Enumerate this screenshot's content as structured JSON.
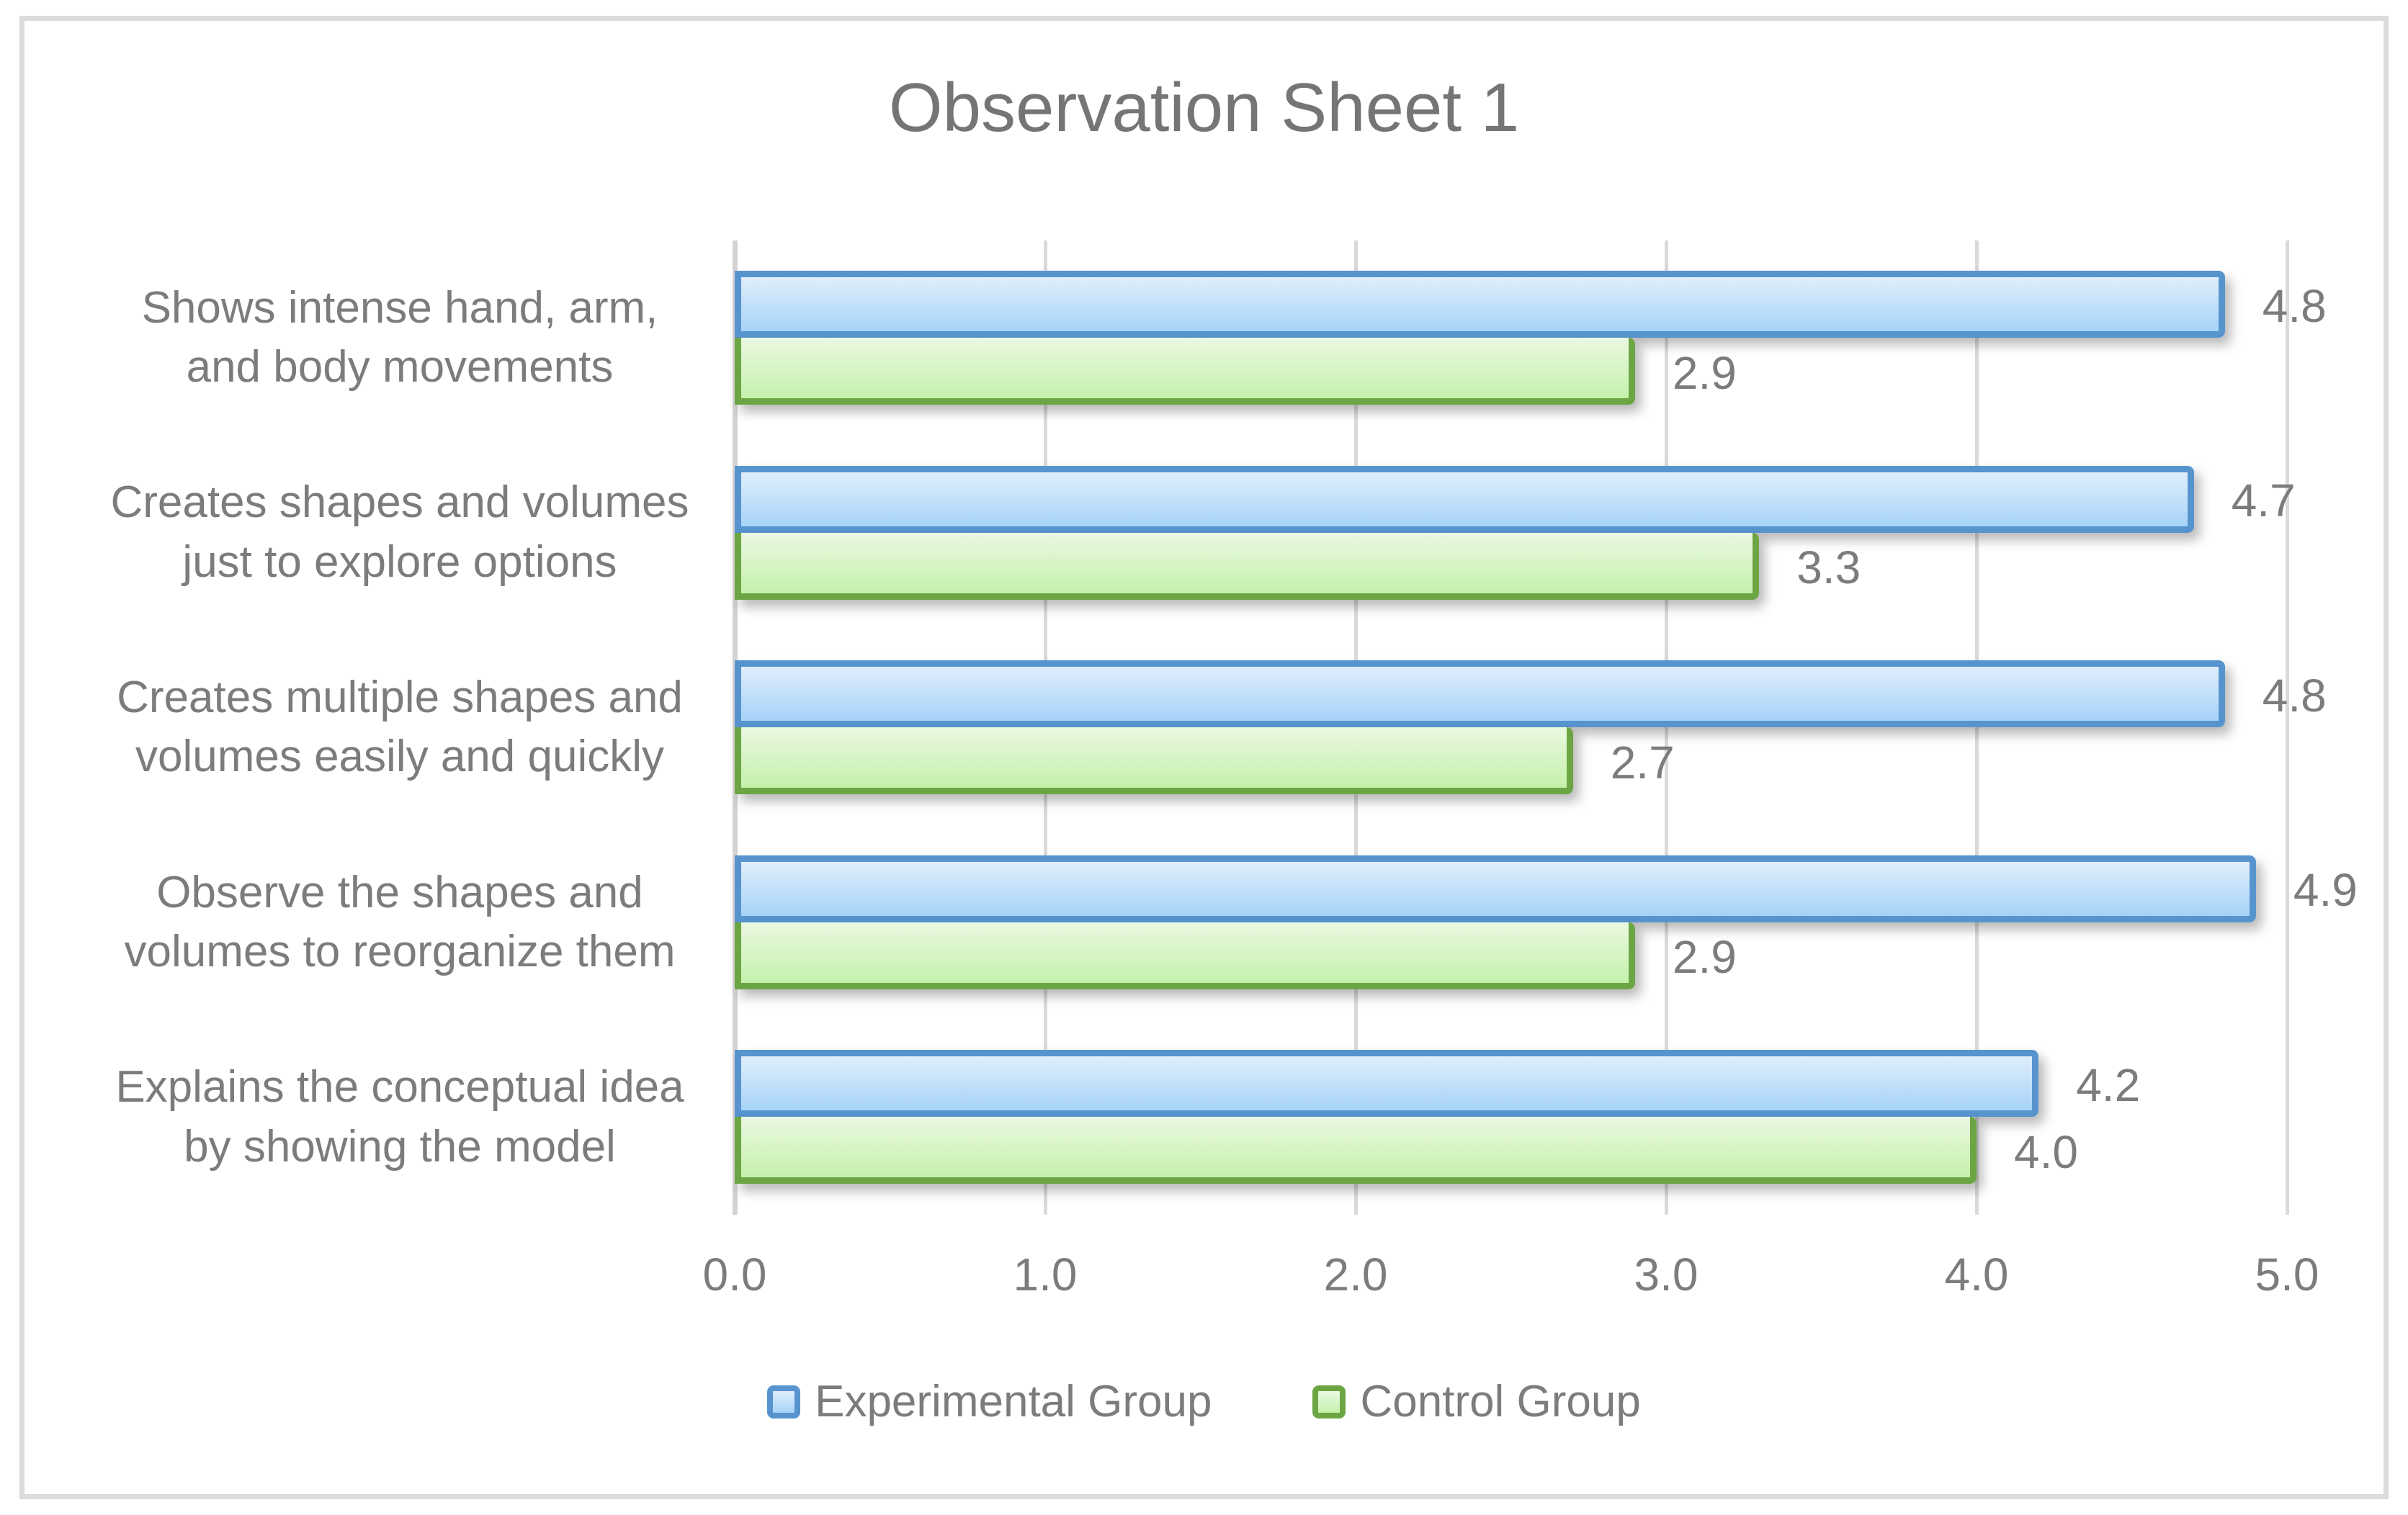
{
  "chart_data": {
    "type": "bar",
    "orientation": "horizontal",
    "title": "Observation Sheet 1",
    "categories": [
      "Shows intense hand, arm,\nand body movements",
      "Creates shapes and volumes\njust to explore options",
      "Creates multiple shapes and\nvolumes easily and quickly",
      "Observe the shapes and\nvolumes to reorganize them",
      "Explains the conceptual idea\nby showing the model"
    ],
    "series": [
      {
        "name": "Experimental Group",
        "values": [
          4.8,
          4.7,
          4.8,
          4.9,
          4.2
        ],
        "border_color": "#5794CE",
        "fill_gradient": [
          "#E0EEFB",
          "#A6D3F9"
        ]
      },
      {
        "name": "Control Group",
        "values": [
          2.9,
          3.3,
          2.7,
          2.9,
          4.0
        ],
        "border_color": "#6CA644",
        "fill_gradient": [
          "#EAF8E2",
          "#C5F1AB"
        ]
      }
    ],
    "x_ticks": [
      "0.0",
      "1.0",
      "2.0",
      "3.0",
      "4.0",
      "5.0"
    ],
    "xlim": [
      0,
      5
    ],
    "grid": true,
    "legend_position": "bottom",
    "text_color": "#7C7C7C",
    "gridline_color": "#DADADA"
  },
  "frame_color": "#DBDBDB"
}
